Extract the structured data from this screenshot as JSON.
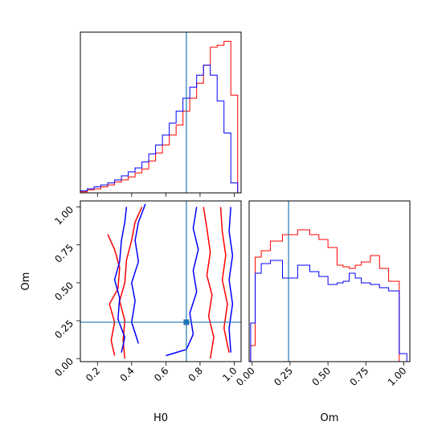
{
  "chart_data": {
    "type": "corner",
    "parameters": [
      "H0",
      "Om"
    ],
    "truth": {
      "H0": 0.72,
      "Om": 0.24
    },
    "colors": {
      "series_a": "#ff0000",
      "series_b": "#0000ff",
      "truth": "#1f77b4"
    },
    "panels": [
      {
        "id": "hist-H0",
        "type": "histogram-step",
        "xlim": [
          0.1,
          1.04
        ],
        "bins": [
          0.1,
          0.14,
          0.18,
          0.22,
          0.26,
          0.3,
          0.34,
          0.38,
          0.42,
          0.46,
          0.5,
          0.54,
          0.58,
          0.62,
          0.66,
          0.7,
          0.74,
          0.78,
          0.82,
          0.86,
          0.9,
          0.94,
          0.98,
          1.02
        ],
        "series": [
          {
            "color": "#ff0000",
            "values": [
              1,
              3,
              4,
              6,
              8,
              11,
              13,
              16,
              20,
              24,
              32,
              40,
              48,
              58,
              68,
              82,
              95,
              110,
              128,
              146,
              148,
              152,
              98
            ]
          },
          {
            "color": "#0000ff",
            "values": [
              2,
              4,
              6,
              8,
              10,
              13,
              17,
              21,
              25,
              31,
              39,
              48,
              58,
              70,
              82,
              95,
              106,
              118,
              128,
              118,
              92,
              60,
              10
            ]
          }
        ],
        "truth_x": 0.72
      },
      {
        "id": "joint-H0-Om",
        "type": "contour",
        "xlim": [
          0.1,
          1.04
        ],
        "ylim": [
          -0.02,
          1.04
        ],
        "xticks": [
          "0.2",
          "0.4",
          "0.6",
          "0.8",
          "1.0"
        ],
        "yticks": [
          "0.00",
          "0.25",
          "0.50",
          "0.75",
          "1.00"
        ],
        "xlabel": "H0",
        "ylabel": "Om",
        "series": [
          {
            "color": "#ff0000",
            "levels": [
              [
                [
                  0.46,
                  1.0
                ],
                [
                  0.42,
                  0.9
                ],
                [
                  0.4,
                  0.78
                ],
                [
                  0.37,
                  0.65
                ],
                [
                  0.36,
                  0.5
                ],
                [
                  0.33,
                  0.38
                ],
                [
                  0.36,
                  0.25
                ],
                [
                  0.35,
                  0.12
                ],
                [
                  0.36,
                  0.0
                ]
              ],
              [
                [
                  0.26,
                  0.82
                ],
                [
                  0.3,
                  0.72
                ],
                [
                  0.33,
                  0.6
                ],
                [
                  0.32,
                  0.46
                ],
                [
                  0.27,
                  0.36
                ],
                [
                  0.3,
                  0.24
                ],
                [
                  0.28,
                  0.12
                ],
                [
                  0.3,
                  0.02
                ]
              ],
              [
                [
                  0.82,
                  1.0
                ],
                [
                  0.84,
                  0.86
                ],
                [
                  0.86,
                  0.7
                ],
                [
                  0.84,
                  0.55
                ],
                [
                  0.87,
                  0.42
                ],
                [
                  0.85,
                  0.28
                ],
                [
                  0.88,
                  0.14
                ],
                [
                  0.86,
                  0.0
                ]
              ],
              [
                [
                  0.92,
                  1.0
                ],
                [
                  0.93,
                  0.84
                ],
                [
                  0.95,
                  0.68
                ],
                [
                  0.93,
                  0.52
                ],
                [
                  0.96,
                  0.36
                ],
                [
                  0.94,
                  0.2
                ],
                [
                  0.97,
                  0.04
                ]
              ]
            ]
          },
          {
            "color": "#0000ff",
            "levels": [
              [
                [
                  0.37,
                  1.0
                ],
                [
                  0.36,
                  0.9
                ],
                [
                  0.34,
                  0.78
                ],
                [
                  0.33,
                  0.64
                ],
                [
                  0.3,
                  0.52
                ],
                [
                  0.33,
                  0.4
                ],
                [
                  0.32,
                  0.26
                ],
                [
                  0.36,
                  0.14
                ],
                [
                  0.34,
                  0.04
                ]
              ],
              [
                [
                  0.48,
                  1.02
                ],
                [
                  0.44,
                  0.9
                ],
                [
                  0.42,
                  0.78
                ],
                [
                  0.44,
                  0.64
                ],
                [
                  0.4,
                  0.5
                ],
                [
                  0.42,
                  0.38
                ],
                [
                  0.4,
                  0.24
                ],
                [
                  0.44,
                  0.1
                ]
              ],
              [
                [
                  0.78,
                  1.0
                ],
                [
                  0.76,
                  0.86
                ],
                [
                  0.79,
                  0.72
                ],
                [
                  0.76,
                  0.58
                ],
                [
                  0.78,
                  0.44
                ],
                [
                  0.74,
                  0.3
                ],
                [
                  0.76,
                  0.16
                ],
                [
                  0.72,
                  0.06
                ],
                [
                  0.6,
                  0.02
                ]
              ],
              [
                [
                  0.98,
                  1.0
                ],
                [
                  0.97,
                  0.84
                ],
                [
                  0.99,
                  0.68
                ],
                [
                  0.97,
                  0.52
                ],
                [
                  0.99,
                  0.36
                ],
                [
                  0.97,
                  0.2
                ],
                [
                  0.98,
                  0.04
                ]
              ]
            ]
          }
        ],
        "truth": [
          0.72,
          0.24
        ]
      },
      {
        "id": "hist-Om",
        "type": "histogram-step",
        "xlim": [
          -0.02,
          1.04
        ],
        "bins": [
          -0.01,
          0.02,
          0.06,
          0.12,
          0.2,
          0.3,
          0.38,
          0.44,
          0.5,
          0.56,
          0.6,
          0.64,
          0.68,
          0.72,
          0.78,
          0.84,
          0.9,
          0.97,
          1.02
        ],
        "xticks": [
          "0.00",
          "0.25",
          "0.50",
          "0.75",
          "1.00"
        ],
        "xlabel": "Om",
        "series": [
          {
            "color": "#ff0000",
            "values": [
              20,
              130,
              138,
              150,
              158,
              164,
              158,
              152,
              142,
              120,
              118,
              116,
              120,
              124,
              132,
              116,
              100,
              0
            ]
          },
          {
            "color": "#0000ff",
            "values": [
              48,
              110,
              122,
              126,
              104,
              120,
              112,
              106,
              96,
              98,
              100,
              110,
              104,
              98,
              96,
              92,
              88,
              10
            ]
          }
        ],
        "truth_x": 0.24
      }
    ]
  }
}
